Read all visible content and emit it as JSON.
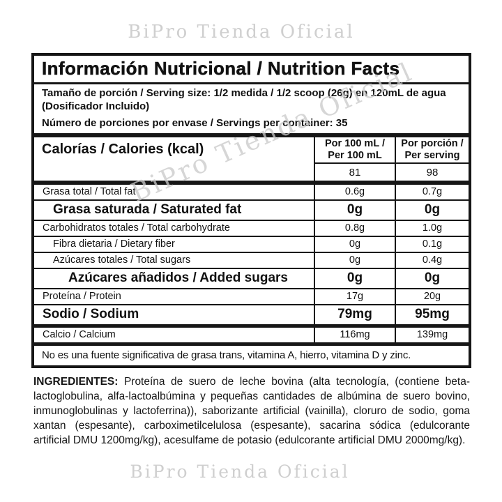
{
  "watermark": {
    "text": "BiPro Tienda Oficial"
  },
  "panel": {
    "title": "Información Nutricional / Nutrition Facts",
    "serving": {
      "size_line": "Tamaño de porción / Serving size: 1/2 medida / 1/2 scoop (26g) en 120mL de agua",
      "dispenser_line": "(Dosificador Incluido)",
      "per_container_line": "Número de porciones por envase / Servings per container: 35"
    },
    "columns": {
      "per_100ml": "Por 100 mL / Per 100 mL",
      "per_serving": "Por porción / Per serving"
    },
    "calories": {
      "label": "Calorías / Calories (kcal)",
      "per_100ml": "81",
      "per_serving": "98"
    },
    "rows": [
      {
        "label": "Grasa total / Total fat",
        "per_100ml": "0.6g",
        "per_serving": "0.7g"
      },
      {
        "label": "Grasa saturada / Saturated fat",
        "per_100ml": "0g",
        "per_serving": "0g"
      },
      {
        "label": "Carbohidratos totales / Total carbohydrate",
        "per_100ml": "0.8g",
        "per_serving": "1.0g"
      },
      {
        "label": "Fibra dietaria / Dietary fiber",
        "per_100ml": "0g",
        "per_serving": "0.1g"
      },
      {
        "label": "Azúcares totales / Total sugars",
        "per_100ml": "0g",
        "per_serving": "0.4g"
      },
      {
        "label": "Azúcares añadidos / Added sugars",
        "per_100ml": "0g",
        "per_serving": "0g"
      },
      {
        "label": "Proteína / Protein",
        "per_100ml": "17g",
        "per_serving": "20g"
      },
      {
        "label": "Sodio / Sodium",
        "per_100ml": "79mg",
        "per_serving": "95mg"
      },
      {
        "label": "Calcio / Calcium",
        "per_100ml": "116mg",
        "per_serving": "139mg"
      }
    ],
    "footnote": "No es una fuente significativa de grasa trans, vitamina A, hierro, vitamina D y zinc."
  },
  "ingredients": {
    "label": "INGREDIENTES:",
    "text": "Proteína de suero de leche bovina (alta tecnología, (contiene beta-lactoglobulina, alfa-lactoalbúmina y pequeñas cantidades de albúmina de suero bovino, inmunoglobulinas y lactoferrina)), saborizante artificial (vainilla), cloruro de sodio, goma xantan (espesante), carboximetilcelulosa (espesante), sacarina sódica (edulcorante artificial DMU 1200mg/kg), acesulfame de potasio (edulcorante artificial DMU 2000mg/kg)."
  },
  "colors": {
    "border": "#161616",
    "watermark": "#cccccc",
    "text": "#111111"
  }
}
